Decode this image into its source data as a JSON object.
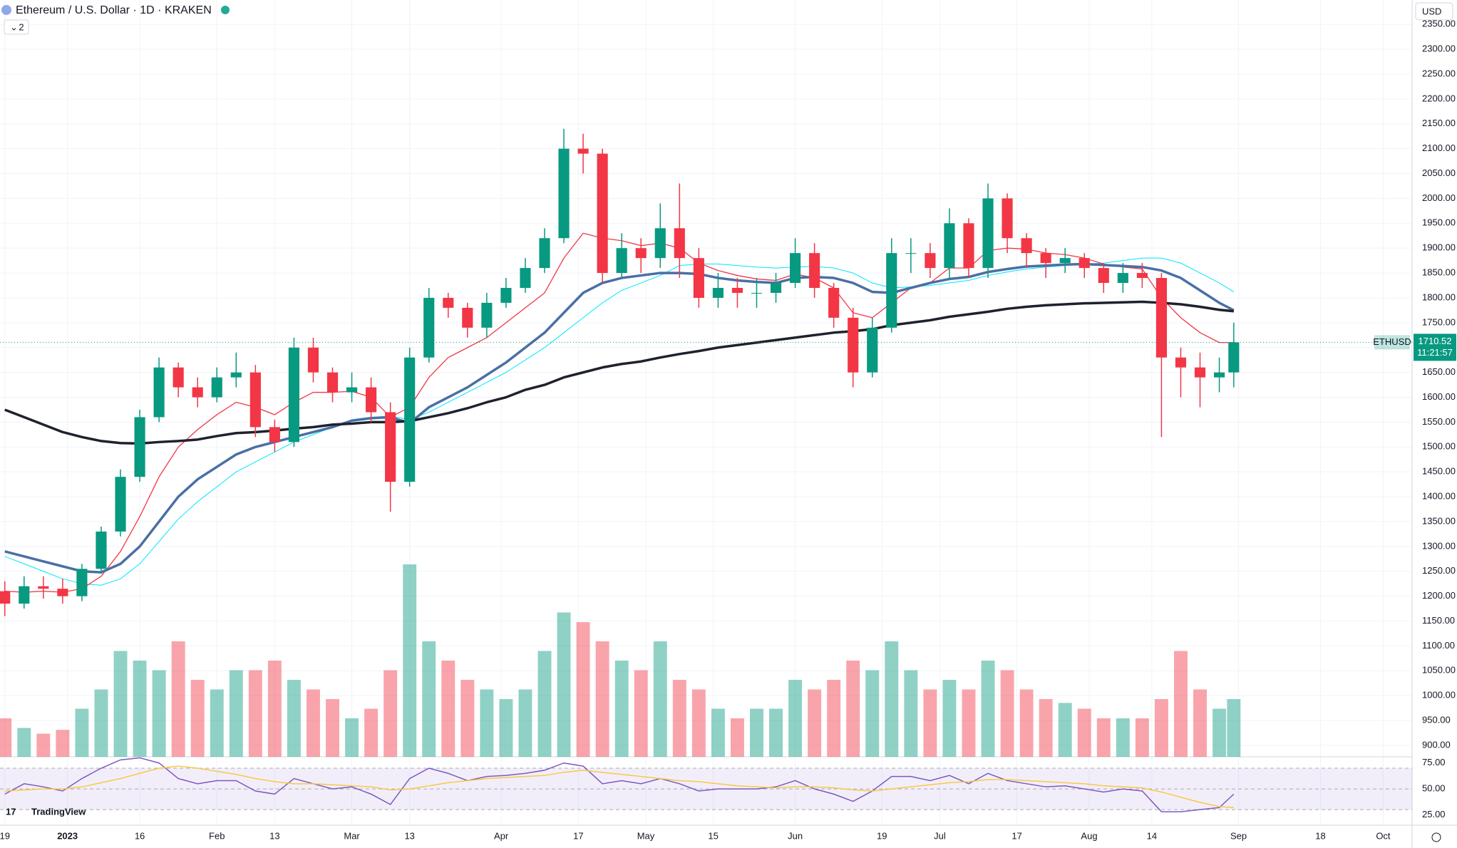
{
  "header": {
    "title": "Ethereum / U.S. Dollar · 1D · KRAKEN",
    "indicators": "2",
    "currency": "USD"
  },
  "brand": "TradingView",
  "chart_data": {
    "type": "candlestick",
    "symbol": "ETHUSD",
    "countdown": "11:21:57",
    "up_color": "#089981",
    "down_color": "#f23645",
    "x": [
      0,
      4,
      8,
      12,
      16,
      20,
      24,
      28,
      32,
      36,
      40,
      44,
      48,
      52,
      56,
      60,
      64,
      68,
      72,
      76,
      80,
      84,
      88,
      92,
      96,
      100,
      104,
      108,
      112,
      116,
      120,
      124,
      128,
      132,
      136,
      140,
      144,
      148,
      152,
      156,
      160,
      164,
      168,
      172,
      176,
      180,
      184,
      188,
      192,
      196,
      200,
      204,
      208,
      212,
      216,
      220,
      224,
      228,
      232,
      236,
      240,
      244,
      248,
      252,
      255
    ],
    "open": [
      1210,
      1185,
      1220,
      1215,
      1200,
      1255,
      1330,
      1440,
      1560,
      1660,
      1620,
      1600,
      1640,
      1650,
      1540,
      1510,
      1700,
      1650,
      1610,
      1620,
      1570,
      1430,
      1680,
      1800,
      1780,
      1740,
      1790,
      1820,
      1860,
      1920,
      2100,
      2090,
      1850,
      1900,
      1880,
      1940,
      1880,
      1800,
      1820,
      1810,
      1810,
      1830,
      1890,
      1820,
      1760,
      1650,
      1740,
      1890,
      1890,
      1860,
      1950,
      1860,
      2000,
      1920,
      1890,
      1870,
      1880,
      1860,
      1830,
      1850,
      1840,
      1680,
      1660,
      1640,
      1650
    ],
    "high": [
      1230,
      1240,
      1240,
      1235,
      1265,
      1340,
      1455,
      1575,
      1680,
      1670,
      1640,
      1660,
      1690,
      1665,
      1555,
      1720,
      1720,
      1660,
      1650,
      1640,
      1590,
      1700,
      1820,
      1810,
      1790,
      1810,
      1840,
      1880,
      1940,
      2140,
      2130,
      2100,
      1930,
      1920,
      1990,
      2030,
      1900,
      1850,
      1840,
      1840,
      1850,
      1920,
      1910,
      1830,
      1780,
      1760,
      1920,
      1920,
      1910,
      1980,
      1960,
      2030,
      2010,
      1930,
      1900,
      1900,
      1890,
      1870,
      1870,
      1870,
      1850,
      1700,
      1690,
      1680,
      1750
    ],
    "low": [
      1160,
      1175,
      1195,
      1185,
      1190,
      1245,
      1320,
      1430,
      1550,
      1600,
      1580,
      1590,
      1620,
      1520,
      1490,
      1500,
      1630,
      1590,
      1590,
      1550,
      1370,
      1420,
      1670,
      1760,
      1720,
      1720,
      1780,
      1810,
      1850,
      1910,
      2050,
      1830,
      1840,
      1850,
      1860,
      1840,
      1780,
      1780,
      1780,
      1780,
      1790,
      1820,
      1800,
      1740,
      1620,
      1640,
      1730,
      1850,
      1840,
      1840,
      1840,
      1840,
      1890,
      1860,
      1840,
      1850,
      1840,
      1810,
      1810,
      1820,
      1520,
      1600,
      1580,
      1610,
      1620
    ],
    "close": [
      1185,
      1220,
      1215,
      1200,
      1255,
      1330,
      1440,
      1560,
      1660,
      1620,
      1600,
      1640,
      1650,
      1540,
      1510,
      1700,
      1650,
      1610,
      1620,
      1570,
      1430,
      1680,
      1800,
      1780,
      1740,
      1790,
      1820,
      1860,
      1920,
      2100,
      2090,
      1850,
      1900,
      1880,
      1940,
      1880,
      1800,
      1820,
      1810,
      1810,
      1830,
      1890,
      1820,
      1760,
      1650,
      1740,
      1890,
      1890,
      1860,
      1950,
      1860,
      2000,
      1920,
      1890,
      1870,
      1880,
      1860,
      1830,
      1850,
      1840,
      1680,
      1660,
      1640,
      1650,
      1710.52
    ],
    "moving_averages": [
      {
        "color": "#00e5ff",
        "width": 1,
        "values": [
          1280,
          1265,
          1250,
          1235,
          1225,
          1222,
          1235,
          1265,
          1310,
          1355,
          1390,
          1420,
          1450,
          1470,
          1490,
          1510,
          1525,
          1540,
          1555,
          1560,
          1562,
          1555,
          1570,
          1590,
          1610,
          1630,
          1650,
          1675,
          1700,
          1730,
          1760,
          1790,
          1815,
          1830,
          1845,
          1865,
          1868,
          1868,
          1865,
          1862,
          1860,
          1862,
          1863,
          1860,
          1850,
          1830,
          1820,
          1822,
          1825,
          1830,
          1835,
          1845,
          1852,
          1858,
          1862,
          1865,
          1868,
          1870,
          1875,
          1880,
          1880,
          1870,
          1850,
          1830,
          1812
        ]
      },
      {
        "color": "#f23645",
        "width": 1.3,
        "values": [
          1210,
          1208,
          1210,
          1208,
          1215,
          1240,
          1290,
          1360,
          1440,
          1500,
          1535,
          1565,
          1590,
          1580,
          1565,
          1590,
          1610,
          1610,
          1612,
          1600,
          1560,
          1580,
          1640,
          1680,
          1700,
          1720,
          1750,
          1780,
          1810,
          1880,
          1930,
          1920,
          1915,
          1905,
          1910,
          1900,
          1870,
          1855,
          1845,
          1838,
          1835,
          1848,
          1840,
          1820,
          1770,
          1760,
          1790,
          1820,
          1830,
          1860,
          1860,
          1895,
          1900,
          1898,
          1890,
          1887,
          1880,
          1868,
          1862,
          1858,
          1800,
          1760,
          1730,
          1710,
          1710
        ]
      },
      {
        "color": "#4a6fa5",
        "width": 3.5,
        "values": [
          1290,
          1280,
          1270,
          1260,
          1250,
          1248,
          1265,
          1300,
          1350,
          1400,
          1435,
          1460,
          1485,
          1500,
          1510,
          1520,
          1530,
          1540,
          1553,
          1558,
          1560,
          1548,
          1580,
          1600,
          1620,
          1645,
          1670,
          1700,
          1730,
          1770,
          1810,
          1830,
          1840,
          1845,
          1850,
          1850,
          1848,
          1840,
          1835,
          1832,
          1830,
          1840,
          1842,
          1840,
          1830,
          1812,
          1810,
          1820,
          1830,
          1838,
          1842,
          1852,
          1858,
          1863,
          1865,
          1867,
          1868,
          1866,
          1864,
          1862,
          1855,
          1840,
          1815,
          1790,
          1775
        ]
      },
      {
        "color": "#1e222d",
        "width": 3.5,
        "values": [
          1575,
          1560,
          1545,
          1530,
          1520,
          1512,
          1508,
          1507,
          1510,
          1512,
          1515,
          1522,
          1528,
          1530,
          1533,
          1537,
          1540,
          1545,
          1547,
          1550,
          1550,
          1552,
          1560,
          1568,
          1578,
          1590,
          1600,
          1615,
          1625,
          1640,
          1650,
          1660,
          1667,
          1672,
          1680,
          1687,
          1693,
          1700,
          1705,
          1710,
          1715,
          1720,
          1725,
          1730,
          1733,
          1737,
          1745,
          1750,
          1755,
          1762,
          1767,
          1772,
          1778,
          1782,
          1785,
          1787,
          1789,
          1790,
          1791,
          1792,
          1790,
          1787,
          1782,
          1776,
          1773
        ]
      }
    ],
    "volume": [
      20,
      15,
      12,
      14,
      25,
      35,
      55,
      50,
      45,
      60,
      40,
      35,
      45,
      45,
      50,
      40,
      35,
      30,
      20,
      25,
      45,
      100,
      60,
      50,
      40,
      35,
      30,
      35,
      55,
      75,
      70,
      60,
      50,
      45,
      60,
      40,
      35,
      25,
      20,
      25,
      25,
      40,
      35,
      40,
      50,
      45,
      60,
      45,
      35,
      40,
      35,
      50,
      45,
      35,
      30,
      28,
      25,
      20,
      20,
      20,
      30,
      55,
      35,
      25,
      30
    ],
    "xlim": [
      -1,
      292
    ],
    "xticks": [
      {
        "value": 0,
        "label": "19"
      },
      {
        "value": 13,
        "label": "2023"
      },
      {
        "value": 28,
        "label": "16"
      },
      {
        "value": 44,
        "label": "Feb"
      },
      {
        "value": 56,
        "label": "13"
      },
      {
        "value": 72,
        "label": "Mar"
      },
      {
        "value": 84,
        "label": "13"
      },
      {
        "value": 103,
        "label": "Apr"
      },
      {
        "value": 119,
        "label": "17"
      },
      {
        "value": 133,
        "label": "May"
      },
      {
        "value": 147,
        "label": "15"
      },
      {
        "value": 164,
        "label": "Jun"
      },
      {
        "value": 182,
        "label": "19"
      },
      {
        "value": 194,
        "label": "Jul"
      },
      {
        "value": 210,
        "label": "17"
      },
      {
        "value": 225,
        "label": "Aug"
      },
      {
        "value": 238,
        "label": "14"
      },
      {
        "value": 256,
        "label": "Sep"
      },
      {
        "value": 273,
        "label": "18"
      },
      {
        "value": 286,
        "label": "Oct"
      }
    ],
    "ylim": [
      877,
      2399
    ],
    "yticks": [
      {
        "value": 900,
        "label": "900.00"
      },
      {
        "value": 950,
        "label": "950.00"
      },
      {
        "value": 1000,
        "label": "1000.00"
      },
      {
        "value": 1050,
        "label": "1050.00"
      },
      {
        "value": 1100,
        "label": "1100.00"
      },
      {
        "value": 1150,
        "label": "1150.00"
      },
      {
        "value": 1200,
        "label": "1200.00"
      },
      {
        "value": 1250,
        "label": "1250.00"
      },
      {
        "value": 1300,
        "label": "1300.00"
      },
      {
        "value": 1350,
        "label": "1350.00"
      },
      {
        "value": 1400,
        "label": "1400.00"
      },
      {
        "value": 1450,
        "label": "1450.00"
      },
      {
        "value": 1500,
        "label": "1500.00"
      },
      {
        "value": 1550,
        "label": "1550.00"
      },
      {
        "value": 1600,
        "label": "1600.00"
      },
      {
        "value": 1650,
        "label": "1650.00"
      },
      {
        "value": 1700,
        "label": "1700.00"
      },
      {
        "value": 1750,
        "label": "1750.00"
      },
      {
        "value": 1800,
        "label": "1800.00"
      },
      {
        "value": 1850,
        "label": "1850.00"
      },
      {
        "value": 1900,
        "label": "1900.00"
      },
      {
        "value": 1950,
        "label": "1950.00"
      },
      {
        "value": 2000,
        "label": "2000.00"
      },
      {
        "value": 2050,
        "label": "2050.00"
      },
      {
        "value": 2100,
        "label": "2100.00"
      },
      {
        "value": 2150,
        "label": "2150.00"
      },
      {
        "value": 2200,
        "label": "2200.00"
      },
      {
        "value": 2250,
        "label": "2250.00"
      },
      {
        "value": 2300,
        "label": "2300.00"
      },
      {
        "value": 2350,
        "label": "2350.00"
      }
    ],
    "grid": true,
    "rsi": {
      "color": "#7e57c2",
      "ma_color": "#f7c948",
      "values": [
        45,
        55,
        52,
        48,
        60,
        70,
        78,
        80,
        75,
        60,
        55,
        58,
        58,
        48,
        45,
        60,
        55,
        50,
        52,
        45,
        35,
        60,
        70,
        65,
        58,
        62,
        63,
        65,
        68,
        75,
        72,
        55,
        58,
        55,
        60,
        55,
        48,
        50,
        50,
        50,
        52,
        58,
        50,
        45,
        38,
        48,
        62,
        62,
        58,
        63,
        55,
        65,
        58,
        55,
        52,
        53,
        50,
        47,
        50,
        48,
        28,
        28,
        30,
        32,
        45
      ],
      "ma_values": [
        48,
        49,
        50,
        50,
        52,
        56,
        60,
        65,
        70,
        72,
        70,
        67,
        64,
        60,
        57,
        55,
        55,
        54,
        53,
        52,
        49,
        50,
        53,
        56,
        58,
        60,
        61,
        62,
        63,
        66,
        68,
        66,
        64,
        62,
        60,
        58,
        57,
        55,
        53,
        52,
        51,
        52,
        52,
        51,
        49,
        48,
        50,
        52,
        54,
        56,
        57,
        59,
        59,
        58,
        57,
        56,
        55,
        53,
        52,
        51,
        47,
        42,
        37,
        33,
        32
      ],
      "band_levels": [
        30,
        50,
        70
      ],
      "ylim": [
        15,
        81
      ],
      "yticks": [
        {
          "value": 25,
          "label": "25.00"
        },
        {
          "value": 50,
          "label": "50.00"
        },
        {
          "value": 75,
          "label": "75.00"
        }
      ]
    }
  }
}
